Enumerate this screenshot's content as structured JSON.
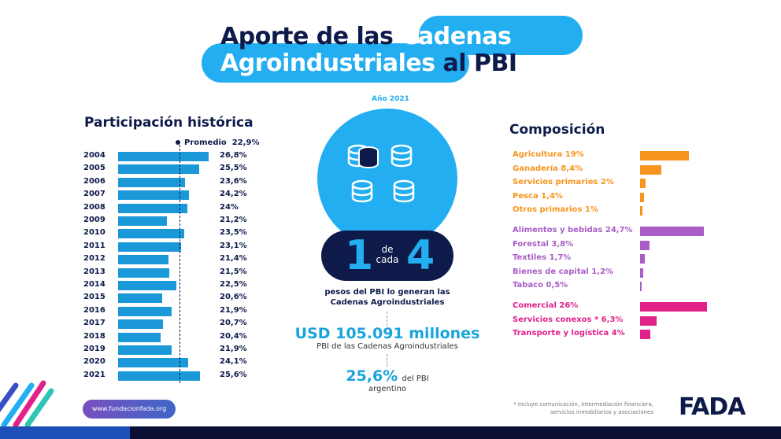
{
  "header": {
    "title_dark_1": "Aporte de las",
    "title_light_1": "Cadenas",
    "title_light_2": "Agroindustriales",
    "title_dark_2": "al PBI",
    "subtitle": "Año 2021"
  },
  "colors": {
    "accent": "#22aef0",
    "navy": "#0d1a4a",
    "bar_blue": "#1a98d8",
    "primario": "#f7941d",
    "industria": "#a95dc6",
    "servicios": "#e0218a"
  },
  "chart_data": [
    {
      "type": "bar",
      "orientation": "horizontal",
      "title": "Participación histórica",
      "categories": [
        "2004",
        "2005",
        "2006",
        "2007",
        "2008",
        "2009",
        "2010",
        "2011",
        "2012",
        "2013",
        "2014",
        "2015",
        "2016",
        "2017",
        "2018",
        "2019",
        "2020",
        "2021"
      ],
      "values": [
        26.8,
        25.5,
        23.6,
        24.2,
        24,
        21.2,
        23.5,
        23.1,
        21.4,
        21.5,
        22.5,
        20.6,
        21.9,
        20.7,
        20.4,
        21.9,
        24.1,
        25.6
      ],
      "value_labels": [
        "26,8%",
        "25,5%",
        "23,6%",
        "24,2%",
        "24%",
        "21,2%",
        "23,5%",
        "23,1%",
        "21,4%",
        "21,5%",
        "22,5%",
        "20,6%",
        "21,9%",
        "20,7%",
        "20,4%",
        "21,9%",
        "24,1%",
        "25,6%"
      ],
      "reference_line": {
        "label": "Promedio",
        "value": 22.9,
        "value_label": "22,9%"
      },
      "unit": "%"
    },
    {
      "type": "bar",
      "orientation": "horizontal",
      "title": "Composición",
      "groups": [
        {
          "color": "#f7941d",
          "items": [
            {
              "label": "Agricultura 19%",
              "value": 19
            },
            {
              "label": "Ganadería 8,4%",
              "value": 8.4
            },
            {
              "label": "Servicios primarios 2%",
              "value": 2
            },
            {
              "label": "Pesca 1,4%",
              "value": 1.4
            },
            {
              "label": "Otros primarios 1%",
              "value": 1
            }
          ]
        },
        {
          "color": "#a95dc6",
          "items": [
            {
              "label": "Alimentos y bebidas 24,7%",
              "value": 24.7
            },
            {
              "label": "Forestal 3,8%",
              "value": 3.8
            },
            {
              "label": "Textiles 1,7%",
              "value": 1.7
            },
            {
              "label": "Bienes de capital 1,2%",
              "value": 1.2
            },
            {
              "label": "Tabaco 0,5%",
              "value": 0.5
            }
          ]
        },
        {
          "color": "#e0218a",
          "items": [
            {
              "label": "Comercial 26%",
              "value": 26
            },
            {
              "label": "Servicios conexos * 6,3%",
              "value": 6.3
            },
            {
              "label": "Transporte y logística 4%",
              "value": 4
            }
          ]
        }
      ],
      "unit": "%"
    }
  ],
  "center": {
    "icon": "coin-stacks-icon",
    "num1": "1",
    "de": "de",
    "cada": "cada",
    "num2": "4",
    "caption_1": "pesos del PBI lo generan las",
    "caption_2": "Cadenas Agroindustriales",
    "usd": "USD 105.091 millones",
    "usd_caption": "PBI de las Cadenas Agroindustriales",
    "pct": "25,6%",
    "pct_caption_1": "del PBI",
    "pct_caption_2": "argentino"
  },
  "footer": {
    "website": "www.fundacionfada.org",
    "note_1": "* Incluye comunicación, intermediación financiera,",
    "note_2": "servicios inmobiliarios y asociaciones",
    "logo": "FADA"
  }
}
